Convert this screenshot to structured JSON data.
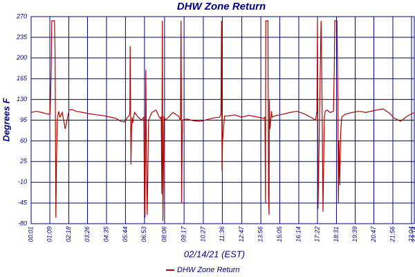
{
  "chart_data": {
    "type": "line",
    "title": "DHW Zone Return",
    "x_label": "02/14/21 (EST)",
    "y_label": "Degrees F",
    "x": [
      1,
      20,
      39,
      55,
      64,
      70,
      74,
      76,
      86,
      88,
      91,
      93,
      96,
      101,
      106,
      114,
      125,
      139,
      150,
      164,
      189,
      210,
      239,
      260,
      290,
      310,
      327,
      340,
      352,
      358,
      360,
      361,
      362,
      364,
      366,
      368,
      370,
      377,
      390,
      403,
      411,
      413,
      415,
      418,
      420,
      423,
      428,
      440,
      455,
      465,
      470,
      474,
      476,
      478,
      480,
      484,
      490,
      516,
      536,
      544,
      546,
      547,
      548,
      550,
      551,
      566,
      591,
      616,
      641,
      666,
      686,
      691,
      693,
      694,
      695,
      697,
      704,
      716,
      741,
      766,
      792,
      817,
      847,
      851,
      853,
      854,
      862,
      864,
      866,
      867,
      869,
      872,
      875,
      877,
      892,
      917,
      942,
      967,
      992,
      1017,
      1035,
      1040,
      1042,
      1044,
      1055,
      1058,
      1062,
      1065,
      1067,
      1070,
      1077,
      1088,
      1100,
      1103,
      1105,
      1113,
      1116,
      1118,
      1120,
      1123,
      1126,
      1130,
      1143,
      1168,
      1193,
      1218,
      1256,
      1281,
      1306,
      1319,
      1344,
      1369,
      1394
    ],
    "series": [
      {
        "name": "DHW Zone Return",
        "color": "#b00000",
        "values": [
          108,
          110,
          108,
          106,
          105,
          106,
          180,
          263,
          263,
          210,
          -70,
          20,
          95,
          110,
          100,
          108,
          80,
          112,
          113,
          110,
          108,
          106,
          104,
          103,
          100,
          98,
          93,
          92,
          100,
          103,
          110,
          220,
          150,
          20,
          80,
          100,
          90,
          108,
          100,
          95,
          100,
          -55,
          -70,
          180,
          40,
          -65,
          95,
          108,
          112,
          102,
          98,
          100,
          -30,
          263,
          -75,
          100,
          95,
          108,
          102,
          95,
          263,
          150,
          -45,
          50,
          95,
          97,
          94,
          93,
          96,
          99,
          100,
          105,
          263,
          150,
          10,
          60,
          102,
          102,
          104,
          100,
          103,
          101,
          98,
          100,
          -45,
          263,
          263,
          -30,
          -65,
          130,
          80,
          95,
          110,
          100,
          103,
          105,
          108,
          110,
          106,
          100,
          95,
          110,
          263,
          -55,
          263,
          160,
          -60,
          40,
          100,
          110,
          112,
          108,
          110,
          180,
          263,
          263,
          130,
          -45,
          60,
          -15,
          70,
          100,
          105,
          108,
          110,
          108,
          112,
          114,
          106,
          99,
          93,
          102,
          108
        ]
      }
    ],
    "xlim": [
      1,
      1394
    ],
    "xticks": [
      {
        "value": 1,
        "label": "00:01"
      },
      {
        "value": 69,
        "label": "01:09"
      },
      {
        "value": 138,
        "label": "02:18"
      },
      {
        "value": 206,
        "label": "03:26"
      },
      {
        "value": 275,
        "label": "04:35"
      },
      {
        "value": 344,
        "label": "05:44"
      },
      {
        "value": 413,
        "label": "06:53"
      },
      {
        "value": 486,
        "label": "08:06"
      },
      {
        "value": 557,
        "label": "09:17"
      },
      {
        "value": 627,
        "label": "10:27"
      },
      {
        "value": 696,
        "label": "11:36"
      },
      {
        "value": 767,
        "label": "12:47"
      },
      {
        "value": 836,
        "label": "13:56"
      },
      {
        "value": 905,
        "label": "15:05"
      },
      {
        "value": 974,
        "label": "16:14"
      },
      {
        "value": 1042,
        "label": "17:22"
      },
      {
        "value": 1111,
        "label": "18:31"
      },
      {
        "value": 1179,
        "label": "19:39"
      },
      {
        "value": 1247,
        "label": "20:47"
      },
      {
        "value": 1316,
        "label": "21:56"
      },
      {
        "value": 1384,
        "label": "23:04"
      },
      {
        "value": 1394,
        "label": "23:14"
      }
    ],
    "ylim": [
      -80,
      270
    ],
    "yticks": [
      -80,
      -45,
      -10,
      25,
      60,
      95,
      130,
      165,
      200,
      235,
      270
    ],
    "grid": true
  }
}
